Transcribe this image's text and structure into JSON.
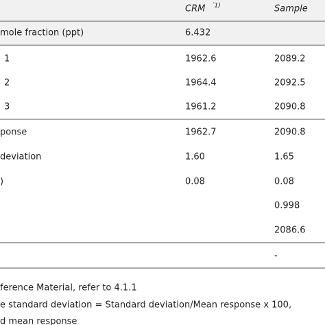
{
  "table": {
    "header": {
      "crm": "CRM",
      "crm_note": "´1)",
      "sample": "Sample"
    },
    "rows": [
      {
        "label": "mole fraction (ppt)",
        "crm": "6.432"
      },
      {
        "label": "1",
        "crm": "1962.6",
        "sample": "2089.2"
      },
      {
        "label": "2",
        "crm": "1964.4",
        "sample": "2092.5"
      },
      {
        "label": "3",
        "crm": "1961.2",
        "sample": "2090.8"
      },
      {
        "label": "ponse",
        "crm": "1962.7",
        "sample": "2090.8"
      },
      {
        "label": "deviation",
        "crm": "1.60",
        "sample": "1.65"
      },
      {
        "label": ")",
        "crm": "0.08",
        "sample": "0.08"
      },
      {
        "sample": "0.998"
      },
      {
        "sample": "2086.6"
      },
      {
        "sample": "-"
      }
    ]
  },
  "footnotes": [
    "ference Material, refer to 4.1.1",
    "e standard deviation = Standard deviation/Mean response x 100,",
    "d mean response"
  ]
}
